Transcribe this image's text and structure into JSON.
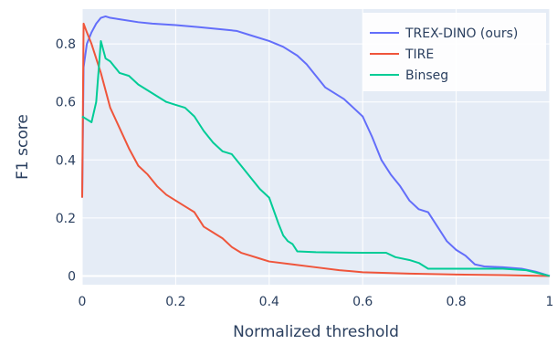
{
  "chart_data": {
    "type": "line",
    "xlabel": "Normalized threshold",
    "ylabel": "F1 score",
    "xlim": [
      0,
      1
    ],
    "ylim": [
      -0.03,
      0.92
    ],
    "x_ticks": [
      0,
      0.2,
      0.4,
      0.6,
      0.8,
      1
    ],
    "x_tick_labels": [
      "0",
      "0.2",
      "0.4",
      "0.6",
      "0.8",
      "1"
    ],
    "y_ticks": [
      0,
      0.2,
      0.4,
      0.6,
      0.8
    ],
    "y_tick_labels": [
      "0",
      "0.2",
      "0.4",
      "0.6",
      "0.8"
    ],
    "grid": true,
    "legend_position": "top-right",
    "plot_background": "#e5ecf6",
    "series": [
      {
        "name": "TREX-DINO (ours)",
        "color": "#636efa",
        "points": [
          [
            0.0,
            0.27
          ],
          [
            0.003,
            0.72
          ],
          [
            0.01,
            0.8
          ],
          [
            0.02,
            0.84
          ],
          [
            0.03,
            0.87
          ],
          [
            0.04,
            0.89
          ],
          [
            0.05,
            0.895
          ],
          [
            0.06,
            0.89
          ],
          [
            0.08,
            0.885
          ],
          [
            0.12,
            0.875
          ],
          [
            0.15,
            0.87
          ],
          [
            0.2,
            0.865
          ],
          [
            0.25,
            0.858
          ],
          [
            0.3,
            0.85
          ],
          [
            0.33,
            0.845
          ],
          [
            0.36,
            0.83
          ],
          [
            0.4,
            0.81
          ],
          [
            0.43,
            0.79
          ],
          [
            0.46,
            0.76
          ],
          [
            0.48,
            0.73
          ],
          [
            0.5,
            0.69
          ],
          [
            0.52,
            0.65
          ],
          [
            0.54,
            0.63
          ],
          [
            0.56,
            0.61
          ],
          [
            0.58,
            0.58
          ],
          [
            0.6,
            0.55
          ],
          [
            0.62,
            0.48
          ],
          [
            0.64,
            0.4
          ],
          [
            0.66,
            0.35
          ],
          [
            0.68,
            0.31
          ],
          [
            0.7,
            0.26
          ],
          [
            0.72,
            0.23
          ],
          [
            0.74,
            0.22
          ],
          [
            0.76,
            0.17
          ],
          [
            0.78,
            0.12
          ],
          [
            0.8,
            0.09
          ],
          [
            0.82,
            0.07
          ],
          [
            0.84,
            0.04
          ],
          [
            0.86,
            0.033
          ],
          [
            0.9,
            0.03
          ],
          [
            0.94,
            0.025
          ],
          [
            0.97,
            0.015
          ],
          [
            1.0,
            0.0
          ]
        ]
      },
      {
        "name": "TIRE",
        "color": "#ef553b",
        "points": [
          [
            0.0,
            0.27
          ],
          [
            0.003,
            0.87
          ],
          [
            0.01,
            0.84
          ],
          [
            0.02,
            0.8
          ],
          [
            0.04,
            0.7
          ],
          [
            0.06,
            0.58
          ],
          [
            0.08,
            0.51
          ],
          [
            0.1,
            0.44
          ],
          [
            0.12,
            0.38
          ],
          [
            0.14,
            0.35
          ],
          [
            0.16,
            0.31
          ],
          [
            0.18,
            0.28
          ],
          [
            0.2,
            0.26
          ],
          [
            0.22,
            0.24
          ],
          [
            0.24,
            0.22
          ],
          [
            0.26,
            0.17
          ],
          [
            0.28,
            0.15
          ],
          [
            0.3,
            0.13
          ],
          [
            0.32,
            0.1
          ],
          [
            0.34,
            0.08
          ],
          [
            0.36,
            0.07
          ],
          [
            0.38,
            0.06
          ],
          [
            0.4,
            0.05
          ],
          [
            0.45,
            0.04
          ],
          [
            0.5,
            0.03
          ],
          [
            0.55,
            0.02
          ],
          [
            0.6,
            0.013
          ],
          [
            0.7,
            0.008
          ],
          [
            0.8,
            0.005
          ],
          [
            0.9,
            0.003
          ],
          [
            1.0,
            0.0
          ]
        ]
      },
      {
        "name": "Binseg",
        "color": "#00cc96",
        "points": [
          [
            0.0,
            0.55
          ],
          [
            0.01,
            0.54
          ],
          [
            0.02,
            0.53
          ],
          [
            0.03,
            0.6
          ],
          [
            0.04,
            0.81
          ],
          [
            0.05,
            0.75
          ],
          [
            0.06,
            0.74
          ],
          [
            0.07,
            0.72
          ],
          [
            0.08,
            0.7
          ],
          [
            0.1,
            0.69
          ],
          [
            0.12,
            0.66
          ],
          [
            0.14,
            0.64
          ],
          [
            0.16,
            0.62
          ],
          [
            0.18,
            0.6
          ],
          [
            0.2,
            0.59
          ],
          [
            0.22,
            0.58
          ],
          [
            0.24,
            0.55
          ],
          [
            0.26,
            0.5
          ],
          [
            0.28,
            0.46
          ],
          [
            0.3,
            0.43
          ],
          [
            0.32,
            0.42
          ],
          [
            0.34,
            0.38
          ],
          [
            0.36,
            0.34
          ],
          [
            0.38,
            0.3
          ],
          [
            0.4,
            0.27
          ],
          [
            0.42,
            0.18
          ],
          [
            0.43,
            0.14
          ],
          [
            0.44,
            0.12
          ],
          [
            0.45,
            0.11
          ],
          [
            0.46,
            0.085
          ],
          [
            0.5,
            0.082
          ],
          [
            0.55,
            0.081
          ],
          [
            0.6,
            0.08
          ],
          [
            0.65,
            0.08
          ],
          [
            0.67,
            0.065
          ],
          [
            0.7,
            0.055
          ],
          [
            0.72,
            0.045
          ],
          [
            0.74,
            0.025
          ],
          [
            0.8,
            0.025
          ],
          [
            0.9,
            0.025
          ],
          [
            0.95,
            0.02
          ],
          [
            1.0,
            0.0
          ]
        ]
      }
    ]
  }
}
